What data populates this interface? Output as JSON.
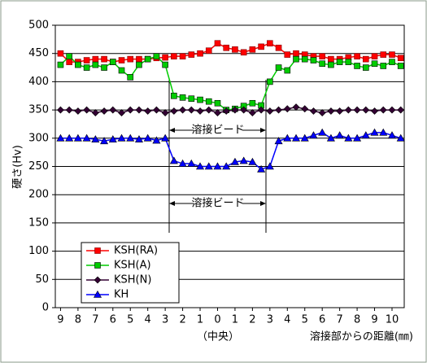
{
  "chart_data": {
    "type": "line",
    "y_label": "硬さ(Hv)",
    "x_label": "溶接部からの距離(㎜)",
    "center_label": "（中央）",
    "annotations": [
      "溶接ビード",
      "溶接ビード"
    ],
    "x": [
      0,
      0.5,
      1,
      1.5,
      2,
      2.5,
      3,
      3.5,
      4,
      4.5,
      5,
      5.5,
      6,
      6.5,
      7,
      7.5,
      8,
      8.5,
      9,
      9.5,
      10,
      10.5,
      11,
      11.5,
      12,
      12.5,
      13,
      13.5,
      14,
      14.5,
      15,
      15.5,
      16,
      16.5,
      17,
      17.5,
      18,
      18.5,
      19,
      19.5
    ],
    "xlim": [
      -0.3,
      19.7
    ],
    "xticks": [
      {
        "value": 0,
        "label": "9"
      },
      {
        "value": 1,
        "label": "8"
      },
      {
        "value": 2,
        "label": "7"
      },
      {
        "value": 3,
        "label": "6"
      },
      {
        "value": 4,
        "label": "5"
      },
      {
        "value": 5,
        "label": "4"
      },
      {
        "value": 6,
        "label": "3"
      },
      {
        "value": 7,
        "label": "2"
      },
      {
        "value": 8,
        "label": "1"
      },
      {
        "value": 9,
        "label": "0"
      },
      {
        "value": 10,
        "label": "1"
      },
      {
        "value": 11,
        "label": "2"
      },
      {
        "value": 12,
        "label": "3"
      },
      {
        "value": 13,
        "label": "4"
      },
      {
        "value": 14,
        "label": "5"
      },
      {
        "value": 15,
        "label": "6"
      },
      {
        "value": 16,
        "label": "7"
      },
      {
        "value": 17,
        "label": "8"
      },
      {
        "value": 18,
        "label": "9"
      },
      {
        "value": 19,
        "label": "10"
      }
    ],
    "ylim": [
      0,
      500
    ],
    "yticks": [
      0,
      50,
      100,
      150,
      200,
      250,
      300,
      350,
      400,
      450,
      500
    ],
    "grid": true,
    "series": [
      {
        "name": "KSH(RA)",
        "color": "#ff0000",
        "marker": "square",
        "values": [
          450,
          435,
          435,
          438,
          440,
          440,
          435,
          438,
          440,
          440,
          440,
          442,
          443,
          445,
          445,
          448,
          450,
          455,
          468,
          460,
          457,
          452,
          457,
          462,
          468,
          460,
          448,
          450,
          448,
          445,
          445,
          440,
          440,
          443,
          445,
          440,
          445,
          448,
          448,
          442
        ]
      },
      {
        "name": "KSH(A)",
        "color": "#00cc00",
        "marker": "square",
        "values": [
          430,
          445,
          430,
          425,
          430,
          425,
          435,
          420,
          408,
          430,
          440,
          445,
          430,
          375,
          372,
          370,
          368,
          365,
          362,
          350,
          352,
          357,
          362,
          358,
          400,
          425,
          420,
          440,
          440,
          438,
          432,
          430,
          435,
          435,
          428,
          425,
          432,
          428,
          435,
          428
        ]
      },
      {
        "name": "KSH(N)",
        "color": "#330033",
        "marker": "diamond",
        "values": [
          350,
          350,
          348,
          350,
          345,
          348,
          350,
          345,
          350,
          350,
          348,
          350,
          345,
          348,
          350,
          350,
          348,
          350,
          345,
          348,
          350,
          350,
          345,
          350,
          348,
          350,
          352,
          355,
          352,
          348,
          345,
          348,
          348,
          350,
          350,
          350,
          348,
          350,
          350,
          350
        ]
      },
      {
        "name": "KH",
        "color": "#0000ff",
        "marker": "triangle",
        "values": [
          300,
          300,
          300,
          300,
          298,
          295,
          298,
          300,
          300,
          298,
          300,
          296,
          300,
          260,
          255,
          255,
          250,
          250,
          250,
          250,
          258,
          260,
          258,
          245,
          250,
          295,
          300,
          300,
          300,
          305,
          310,
          300,
          305,
          300,
          300,
          305,
          310,
          310,
          305,
          300
        ]
      }
    ]
  }
}
